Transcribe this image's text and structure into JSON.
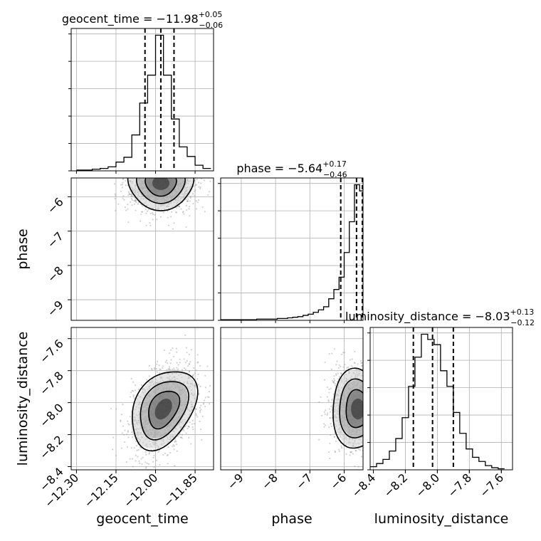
{
  "chart_data": {
    "type": "corner",
    "parameters": [
      "geocent_time",
      "phase",
      "luminosity_distance"
    ],
    "titles": [
      {
        "param": "geocent_time",
        "prefix": "geocent_time = −11.98",
        "sup": "+0.05",
        "sub": "−0.06"
      },
      {
        "param": "phase",
        "prefix": "phase = −5.64",
        "sup": "+0.17",
        "sub": "−0.46"
      },
      {
        "param": "luminosity_distance",
        "prefix": "luminosity_distance = −8.03",
        "sup": "+0.13",
        "sub": "−0.12"
      }
    ],
    "axis_labels": {
      "x": [
        "geocent_time",
        "phase",
        "luminosity_distance"
      ],
      "y": [
        "phase",
        "luminosity_distance"
      ]
    },
    "ranges": {
      "geocent_time": [
        -12.32,
        -11.78
      ],
      "phase": [
        -9.6,
        -5.45
      ],
      "luminosity_distance": [
        -8.42,
        -7.53
      ]
    },
    "ticks": {
      "geocent_time": {
        "values": [
          -12.3,
          -12.15,
          -12.0,
          -11.85
        ],
        "labels": [
          "−12.30",
          "−12.15",
          "−12.00",
          "−11.85"
        ]
      },
      "phase": {
        "values": [
          -9,
          -8,
          -7,
          -6
        ],
        "labels": [
          "−9",
          "−8",
          "−7",
          "−6"
        ]
      },
      "luminosity_distance": {
        "values": [
          -8.4,
          -8.2,
          -8.0,
          -7.8,
          -7.6
        ],
        "labels": [
          "−8.4",
          "−8.2",
          "−8.0",
          "−7.8",
          "−7.6"
        ]
      }
    },
    "quantiles": {
      "geocent_time": [
        -12.04,
        -11.98,
        -11.93
      ],
      "phase": [
        -6.1,
        -5.64,
        -5.47
      ],
      "luminosity_distance": [
        -8.15,
        -8.03,
        -7.9
      ]
    },
    "histograms": {
      "geocent_time": {
        "edges": [
          -12.3,
          -12.27,
          -12.24,
          -12.21,
          -12.18,
          -12.15,
          -12.12,
          -12.09,
          -12.06,
          -12.03,
          -12.0,
          -11.97,
          -11.94,
          -11.91,
          -11.88,
          -11.85,
          -11.82,
          -11.79
        ],
        "counts": [
          1,
          1,
          2,
          3,
          5,
          11,
          17,
          45,
          85,
          120,
          170,
          120,
          65,
          30,
          18,
          7,
          3
        ]
      },
      "phase": {
        "edges": [
          -9.6,
          -9.45,
          -9.3,
          -9.15,
          -9.0,
          -8.85,
          -8.7,
          -8.55,
          -8.4,
          -8.25,
          -8.1,
          -7.95,
          -7.8,
          -7.65,
          -7.5,
          -7.35,
          -7.2,
          -7.05,
          -6.9,
          -6.75,
          -6.6,
          -6.45,
          -6.3,
          -6.15,
          -6.0,
          -5.85,
          -5.7,
          -5.55,
          -5.45
        ],
        "counts": [
          1,
          1,
          1,
          1,
          1,
          1,
          1,
          2,
          2,
          2,
          2,
          3,
          3,
          4,
          5,
          6,
          8,
          10,
          13,
          17,
          22,
          35,
          50,
          70,
          110,
          160,
          220,
          210
        ]
      },
      "luminosity_distance": {
        "edges": [
          -8.42,
          -8.38,
          -8.34,
          -8.3,
          -8.26,
          -8.22,
          -8.18,
          -8.14,
          -8.1,
          -8.06,
          -8.02,
          -7.98,
          -7.94,
          -7.9,
          -7.86,
          -7.82,
          -7.78,
          -7.74,
          -7.7,
          -7.66,
          -7.62,
          -7.58
        ],
        "counts": [
          3,
          6,
          10,
          18,
          30,
          50,
          80,
          108,
          130,
          125,
          120,
          95,
          80,
          55,
          35,
          20,
          12,
          8,
          4,
          2,
          1
        ]
      }
    },
    "pairs": [
      {
        "x": "geocent_time",
        "y": "phase",
        "mean": [
          -11.98,
          -5.6
        ],
        "sd": [
          0.065,
          0.4
        ],
        "rho": 0.0,
        "contours": [
          0.5,
          0.9,
          1.4,
          1.9
        ]
      },
      {
        "x": "geocent_time",
        "y": "luminosity_distance",
        "mean": [
          -11.97,
          -8.04
        ],
        "sd": [
          0.065,
          0.13
        ],
        "rho": 0.35,
        "contours": [
          0.5,
          0.9,
          1.4,
          1.9
        ]
      },
      {
        "x": "phase",
        "y": "luminosity_distance",
        "mean": [
          -5.6,
          -8.04
        ],
        "sd": [
          0.4,
          0.13
        ],
        "rho": 0.0,
        "contours": [
          0.5,
          0.9,
          1.4,
          1.9
        ]
      }
    ],
    "grid": true,
    "colors": {
      "line": "#000000",
      "grid": "#b0b0b0",
      "scatter": "#9a9a9a"
    }
  }
}
